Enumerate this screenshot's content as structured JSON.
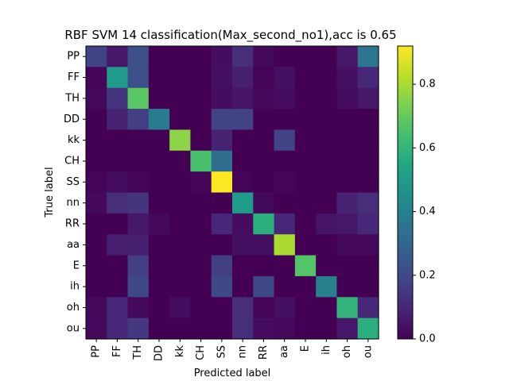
{
  "chart_data": {
    "type": "heatmap",
    "title": "RBF SVM 14 classification(Max_second_no1),acc is 0.65",
    "xlabel": "Predicted label",
    "ylabel": "True label",
    "x_categories": [
      "PP",
      "FF",
      "TH",
      "DD",
      "kk",
      "CH",
      "SS",
      "nn",
      "RR",
      "aa",
      "E",
      "ih",
      "oh",
      "ou"
    ],
    "y_categories": [
      "PP",
      "FF",
      "TH",
      "DD",
      "kk",
      "CH",
      "SS",
      "nn",
      "RR",
      "aa",
      "E",
      "ih",
      "oh",
      "ou"
    ],
    "colormap": "viridis",
    "vmin": 0.0,
    "vmax": 0.92,
    "colorbar_ticks": [
      "0.0",
      "0.2",
      "0.4",
      "0.6",
      "0.8"
    ],
    "colorbar_tick_values": [
      0.0,
      0.2,
      0.4,
      0.6,
      0.8
    ],
    "values": [
      [
        0.18,
        0.06,
        0.22,
        0.0,
        0.0,
        0.0,
        0.03,
        0.12,
        0.02,
        0.0,
        0.0,
        0.0,
        0.06,
        0.36
      ],
      [
        0.01,
        0.5,
        0.22,
        0.0,
        0.0,
        0.0,
        0.04,
        0.08,
        0.01,
        0.04,
        0.0,
        0.0,
        0.04,
        0.1
      ],
      [
        0.02,
        0.14,
        0.68,
        0.0,
        0.0,
        0.0,
        0.03,
        0.05,
        0.02,
        0.03,
        0.0,
        0.0,
        0.03,
        0.06
      ],
      [
        0.0,
        0.09,
        0.17,
        0.38,
        0.0,
        0.0,
        0.18,
        0.18,
        0.0,
        0.0,
        0.0,
        0.0,
        0.0,
        0.0
      ],
      [
        0.0,
        0.0,
        0.0,
        0.0,
        0.76,
        0.0,
        0.09,
        0.0,
        0.0,
        0.18,
        0.0,
        0.0,
        0.0,
        0.0
      ],
      [
        0.0,
        0.0,
        0.0,
        0.0,
        0.0,
        0.65,
        0.33,
        0.0,
        0.0,
        0.0,
        0.0,
        0.0,
        0.0,
        0.0
      ],
      [
        0.01,
        0.03,
        0.01,
        0.0,
        0.0,
        0.01,
        0.92,
        0.01,
        0.0,
        0.01,
        0.0,
        0.0,
        0.0,
        0.0
      ],
      [
        0.02,
        0.12,
        0.14,
        0.0,
        0.0,
        0.0,
        0.0,
        0.5,
        0.02,
        0.0,
        0.0,
        0.0,
        0.09,
        0.12
      ],
      [
        0.0,
        0.0,
        0.06,
        0.02,
        0.0,
        0.0,
        0.1,
        0.03,
        0.58,
        0.1,
        0.0,
        0.05,
        0.06,
        0.1
      ],
      [
        0.0,
        0.08,
        0.08,
        0.0,
        0.0,
        0.0,
        0.0,
        0.04,
        0.04,
        0.8,
        0.0,
        0.0,
        0.02,
        0.02
      ],
      [
        0.0,
        0.0,
        0.17,
        0.0,
        0.0,
        0.0,
        0.17,
        0.0,
        0.0,
        0.0,
        0.67,
        0.0,
        0.0,
        0.0
      ],
      [
        0.0,
        0.0,
        0.2,
        0.0,
        0.0,
        0.0,
        0.2,
        0.0,
        0.2,
        0.0,
        0.0,
        0.4,
        0.0,
        0.0
      ],
      [
        0.02,
        0.1,
        0.02,
        0.0,
        0.03,
        0.0,
        0.0,
        0.12,
        0.01,
        0.04,
        0.0,
        0.0,
        0.6,
        0.1
      ],
      [
        0.02,
        0.1,
        0.15,
        0.0,
        0.0,
        0.0,
        0.0,
        0.12,
        0.03,
        0.02,
        0.0,
        0.0,
        0.06,
        0.58
      ]
    ]
  }
}
